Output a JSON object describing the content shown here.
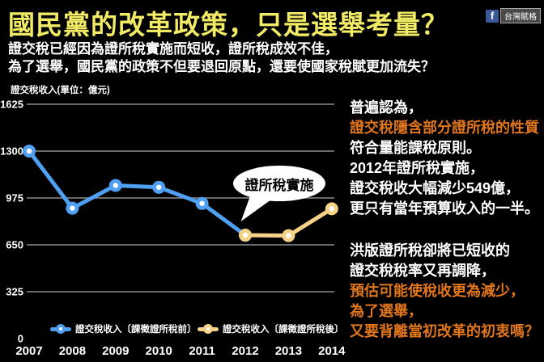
{
  "colors": {
    "background": "#000000",
    "title_yellow": "#F0EA65",
    "orange": "#E2761C",
    "blue_line": "#4FA0F2",
    "yellow_line": "#F6D287",
    "grid_gray": "#8C8C8C",
    "facebook_blue": "#3B5998"
  },
  "header": {
    "title": "國民黨的改革政策，只是選舉考量？",
    "subtitle_line1": "證交稅已經因為證所稅實施而短收，證所稅成效不佳，",
    "subtitle_line2": "為了選舉，國民黨的政策不但要退回原點，還要使國家稅賦更加流失？",
    "fb_badge": {
      "icon": "f",
      "label": "台灣賦格"
    }
  },
  "chart_data": {
    "type": "line",
    "ylabel": "證交稅收入(單位：億元)",
    "x": [
      2007,
      2008,
      2009,
      2010,
      2011,
      2012,
      2013,
      2014
    ],
    "yticks": [
      0,
      325,
      650,
      975,
      1300,
      1625
    ],
    "ylim": [
      0,
      1625
    ],
    "grid": true,
    "legend_position": "bottom",
    "annotation": {
      "text": "證所稅實施",
      "target_year": 2012
    },
    "series": [
      {
        "name": "證交稅收入〔課徵證所稅前〕",
        "color": "#4FA0F2",
        "years": [
          2007,
          2008,
          2009,
          2010,
          2011,
          2012
        ],
        "values": [
          1300,
          904,
          1062,
          1049,
          937,
          717
        ]
      },
      {
        "name": "證交稅收入〔課徵證所稅後〕",
        "color": "#F6D287",
        "years": [
          2012,
          2013,
          2014
        ],
        "values": [
          717,
          714,
          900
        ]
      }
    ]
  },
  "panel_top": {
    "lines": [
      "普遍認為，",
      "證交稅隱含部分證所稅的性質",
      "符合量能課稅原則。",
      "2012年證所稅實施，",
      "證交稅收大幅減少549億，",
      "更只有當年預算收入的一半。"
    ]
  },
  "panel_bottom": {
    "lines": [
      "洪版證所稅卻將已短收的",
      "證交稅稅率又再調降，",
      "預估可能使稅收更為減少，",
      "為了選舉，",
      "又要背離當初改革的初衷嗎？"
    ]
  }
}
